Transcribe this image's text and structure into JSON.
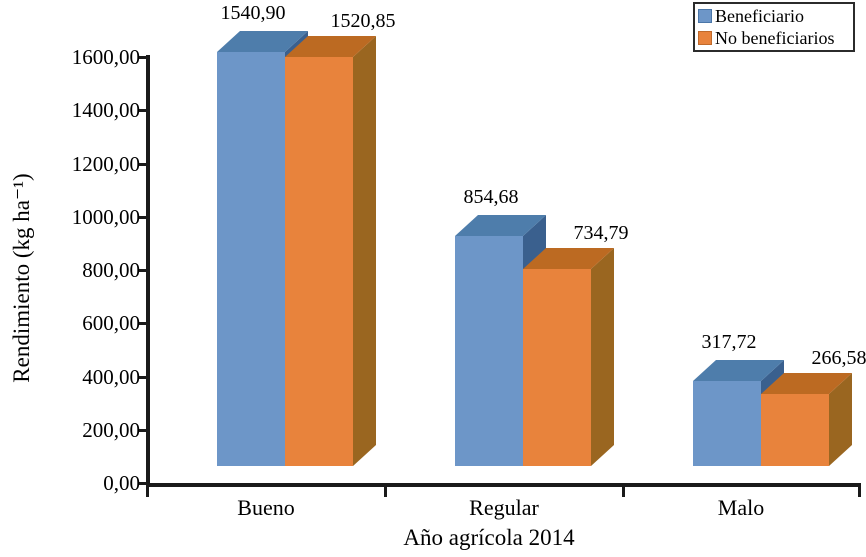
{
  "chart_data": {
    "type": "bar",
    "style": "3d-clustered-column",
    "title": "",
    "xlabel": "Año agrícola 2014",
    "ylabel": "Rendimiento (kg ha⁻¹)",
    "categories": [
      "Bueno",
      "Regular",
      "Malo"
    ],
    "series": [
      {
        "name": "Beneficiario",
        "values": [
          1540.9,
          854.68,
          317.72
        ],
        "value_labels": [
          "1540,90",
          "854,68",
          "317,72"
        ],
        "color_front": "#6D96C8",
        "color_top": "#4E7DAB",
        "color_side": "#3A608E",
        "swatch_border": "#4a76a8"
      },
      {
        "name": "No beneficiarios",
        "values": [
          1520.85,
          734.79,
          266.58
        ],
        "value_labels": [
          "1520,85",
          "734,79",
          "266,58"
        ],
        "color_front": "#E8833C",
        "color_top": "#BC6A22",
        "color_side": "#9A6620",
        "swatch_border": "#c06a2b"
      }
    ],
    "ylim": [
      0,
      1600
    ],
    "ytick_step": 200,
    "ytick_labels": [
      "0,00",
      "200,00",
      "400,00",
      "600,00",
      "800,00",
      "1000,00",
      "1200,00",
      "1400,00",
      "1600,00"
    ],
    "grid": false,
    "legend": {
      "position": "top-right",
      "entries": [
        "Beneficiario",
        "No beneficiarios"
      ]
    },
    "axis_color": "#1a1a1a",
    "text_color": "#000000",
    "background": "#ffffff"
  }
}
